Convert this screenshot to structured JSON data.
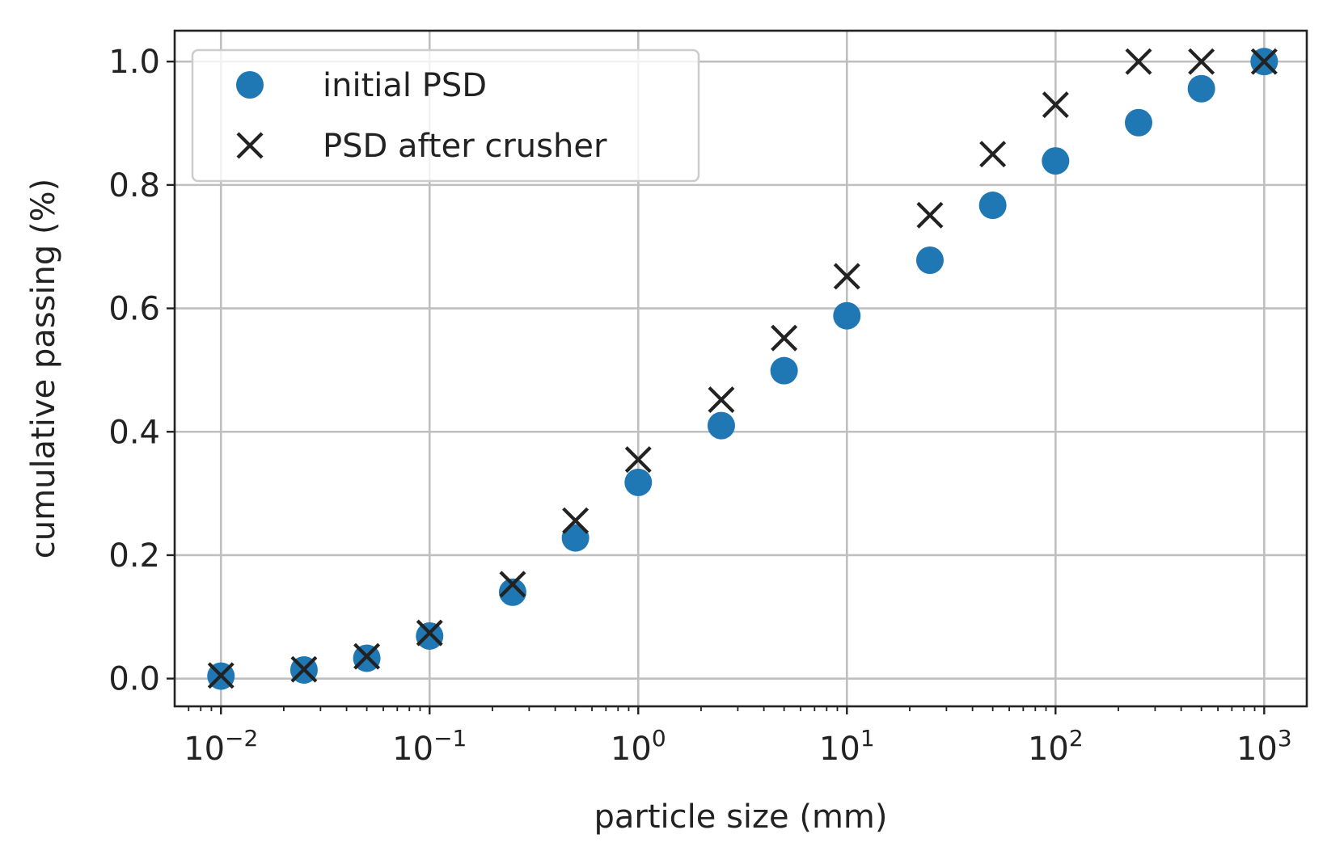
{
  "chart_data": {
    "type": "scatter",
    "xscale": "log",
    "xlabel": "particle size (mm)",
    "ylabel": "cumulative passing (%)",
    "xlim": [
      0.006,
      1600
    ],
    "ylim": [
      -0.045,
      1.05
    ],
    "grid": true,
    "legend_position": "top-left",
    "x_major_ticks": [
      {
        "value": 0.01,
        "base": "10",
        "exp": "−2"
      },
      {
        "value": 0.1,
        "base": "10",
        "exp": "−1"
      },
      {
        "value": 1,
        "base": "10",
        "exp": "0"
      },
      {
        "value": 10,
        "base": "10",
        "exp": "1"
      },
      {
        "value": 100,
        "base": "10",
        "exp": "2"
      },
      {
        "value": 1000,
        "base": "10",
        "exp": "3"
      }
    ],
    "y_ticks": [
      {
        "value": 0.0,
        "label": "0.0"
      },
      {
        "value": 0.2,
        "label": "0.2"
      },
      {
        "value": 0.4,
        "label": "0.4"
      },
      {
        "value": 0.6,
        "label": "0.6"
      },
      {
        "value": 0.8,
        "label": "0.8"
      },
      {
        "value": 1.0,
        "label": "1.0"
      }
    ],
    "series": [
      {
        "name": "initial PSD",
        "marker": "circle",
        "color": "#1f77b4",
        "x": [
          0.01,
          0.025,
          0.05,
          0.1,
          0.25,
          0.5,
          1,
          2.5,
          5,
          10,
          25,
          50,
          100,
          250,
          500,
          1000
        ],
        "y": [
          0.004,
          0.014,
          0.033,
          0.069,
          0.14,
          0.228,
          0.318,
          0.41,
          0.499,
          0.588,
          0.678,
          0.767,
          0.839,
          0.901,
          0.956,
          1.0
        ]
      },
      {
        "name": "PSD after crusher",
        "marker": "x",
        "color": "#222222",
        "x": [
          0.01,
          0.025,
          0.05,
          0.1,
          0.25,
          0.5,
          1,
          2.5,
          5,
          10,
          25,
          50,
          100,
          250,
          500,
          1000
        ],
        "y": [
          0.005,
          0.015,
          0.036,
          0.074,
          0.153,
          0.256,
          0.355,
          0.452,
          0.552,
          0.652,
          0.751,
          0.85,
          0.93,
          1.0,
          1.0,
          1.0
        ]
      }
    ]
  }
}
